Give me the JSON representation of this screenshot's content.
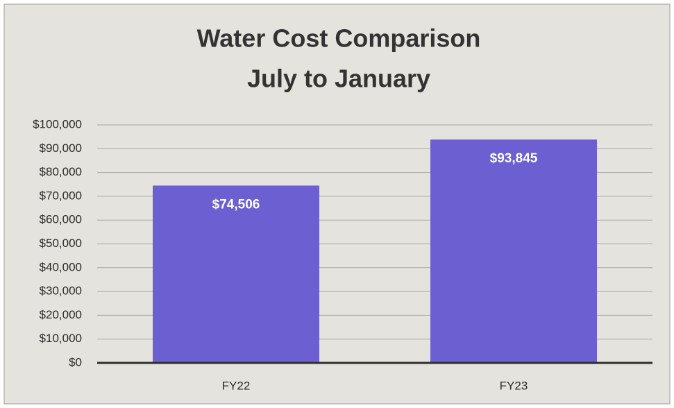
{
  "chart_data": {
    "type": "bar",
    "title": "Water Cost Comparison",
    "subtitle": "July to January",
    "categories": [
      "FY22",
      "FY23"
    ],
    "values": [
      74506,
      93845
    ],
    "value_labels": [
      "$74,506",
      "$93,845"
    ],
    "color": "#6b5fd1",
    "ylim": [
      0,
      100000
    ],
    "yticks": [
      {
        "value": 0,
        "label": "$0"
      },
      {
        "value": 10000,
        "label": "$10,000"
      },
      {
        "value": 20000,
        "label": "$20,000"
      },
      {
        "value": 30000,
        "label": "$30,000"
      },
      {
        "value": 40000,
        "label": "$40,000"
      },
      {
        "value": 50000,
        "label": "$50,000"
      },
      {
        "value": 60000,
        "label": "$60,000"
      },
      {
        "value": 70000,
        "label": "$70,000"
      },
      {
        "value": 80000,
        "label": "$80,000"
      },
      {
        "value": 90000,
        "label": "$90,000"
      },
      {
        "value": 100000,
        "label": "$100,000"
      }
    ],
    "grid": true
  }
}
